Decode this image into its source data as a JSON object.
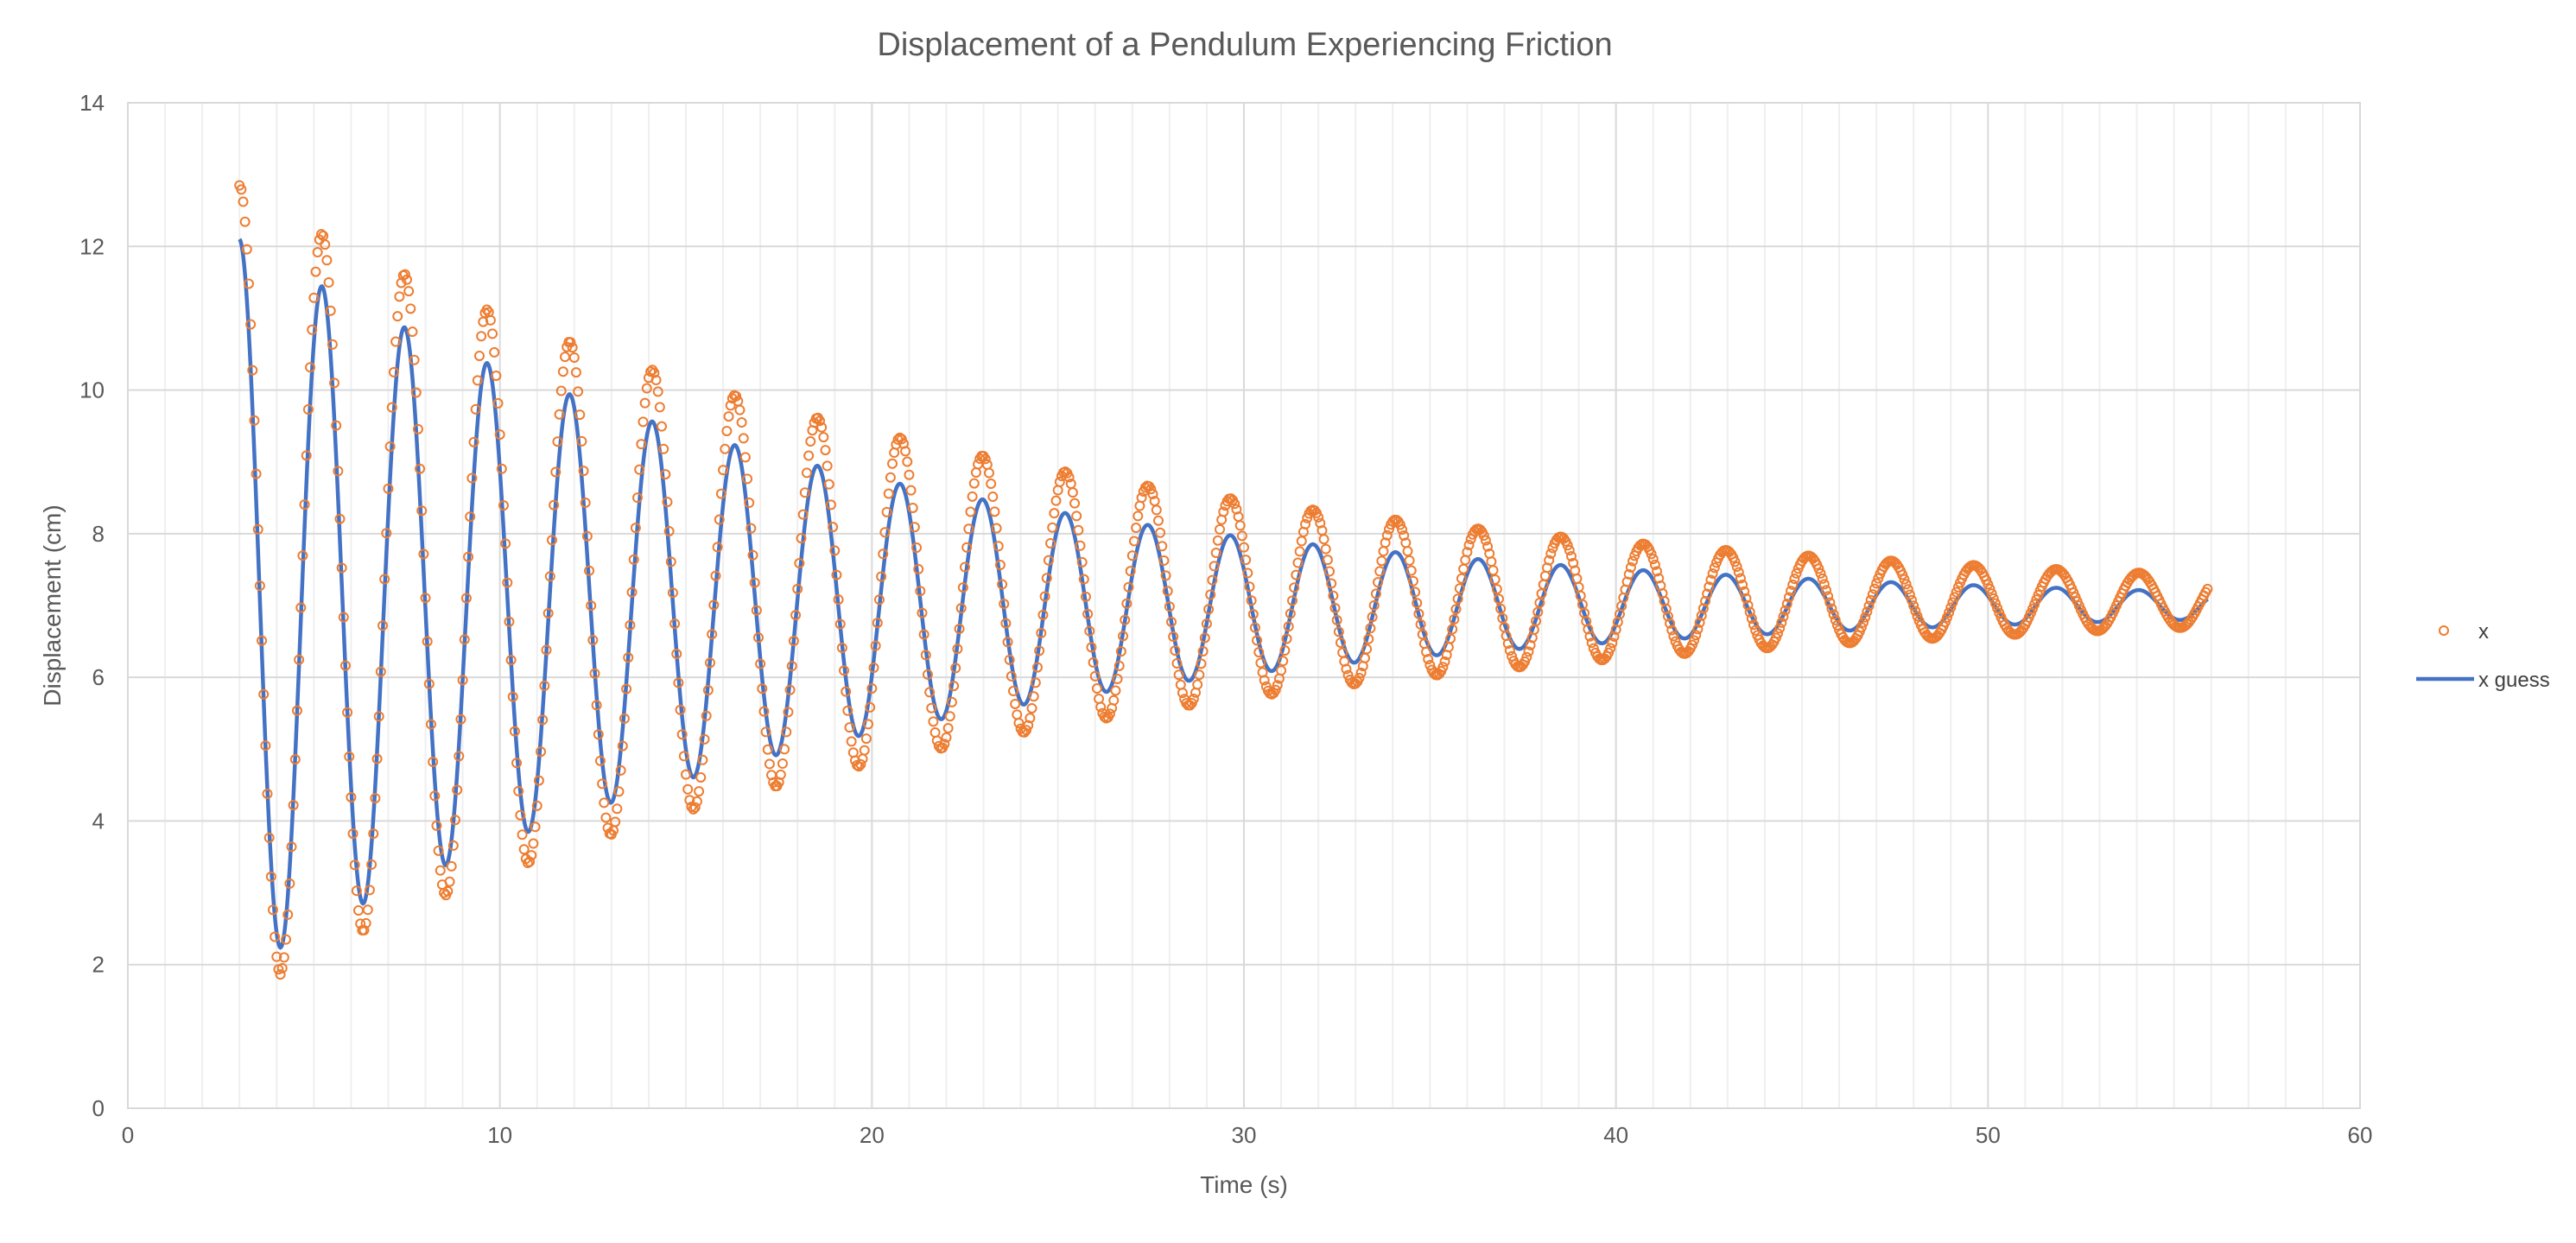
{
  "chart_data": {
    "type": "scatter",
    "title": "Displacement of a Pendulum Experiencing Friction",
    "xlabel": "Time (s)",
    "ylabel": "Displacement (cm)",
    "xlim": [
      0,
      60
    ],
    "ylim": [
      0,
      14
    ],
    "x_major_ticks": [
      0,
      10,
      20,
      30,
      40,
      50,
      60
    ],
    "x_minor_step": 1,
    "y_major_ticks": [
      0,
      2,
      4,
      6,
      8,
      10,
      12,
      14
    ],
    "grid": true,
    "legend_placement": "right",
    "colors": {
      "x": "#ED7D31",
      "x_guess": "#4472C4"
    },
    "series": [
      {
        "name": "x",
        "marker": "open-circle",
        "x_range": [
          3.0,
          55.9
        ],
        "sample_step": 0.05,
        "model": {
          "equilibrium": 7.05,
          "amplitude": 5.6,
          "decay_rate": 0.052,
          "period": 2.22,
          "t0": 3.0,
          "first_peak": 12.7,
          "first_trough": 1.7
        }
      },
      {
        "name": "x guess",
        "marker": "line",
        "x_range": [
          3.0,
          55.9
        ],
        "model": {
          "equilibrium": 7.0,
          "amplitude": 5.1,
          "decay_rate": 0.062,
          "period": 2.22,
          "t0": 3.0,
          "start_value": 12.1
        }
      }
    ]
  }
}
